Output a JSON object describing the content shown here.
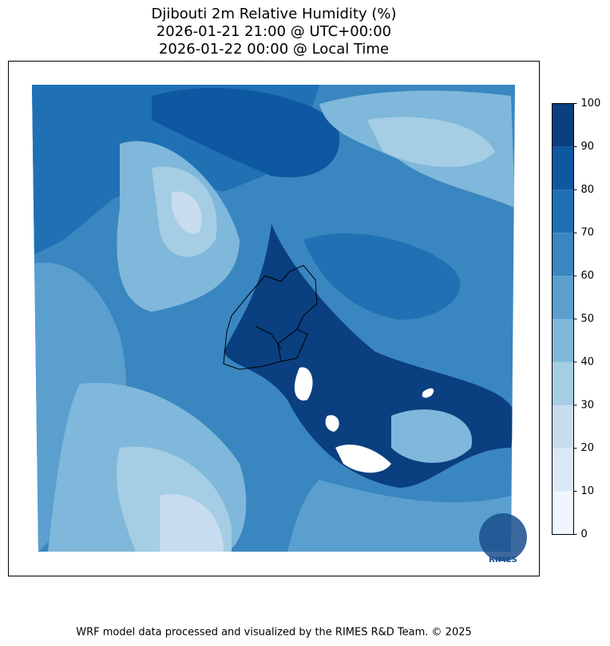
{
  "chart_data": {
    "type": "filled-contour-map",
    "title": [
      "Djibouti 2m Relative Humidity (%)",
      "2026-01-21 21:00 @ UTC+00:00",
      "2026-01-22 00:00 @ Local Time"
    ],
    "colorbar": {
      "ylim": [
        0,
        100
      ],
      "yticks": [
        0,
        10,
        20,
        30,
        40,
        50,
        60,
        70,
        80,
        90,
        100
      ],
      "colors": [
        "#f0f6fd",
        "#dbe9f6",
        "#c7dcef",
        "#a5cde3",
        "#7fb8da",
        "#5a9fce",
        "#3a86c0",
        "#2070b4",
        "#0e58a2",
        "#0a3f80"
      ]
    },
    "logo": "RIMES",
    "footer": "WRF model data processed and visualized by the RIMES R&D Team. © 2025"
  }
}
